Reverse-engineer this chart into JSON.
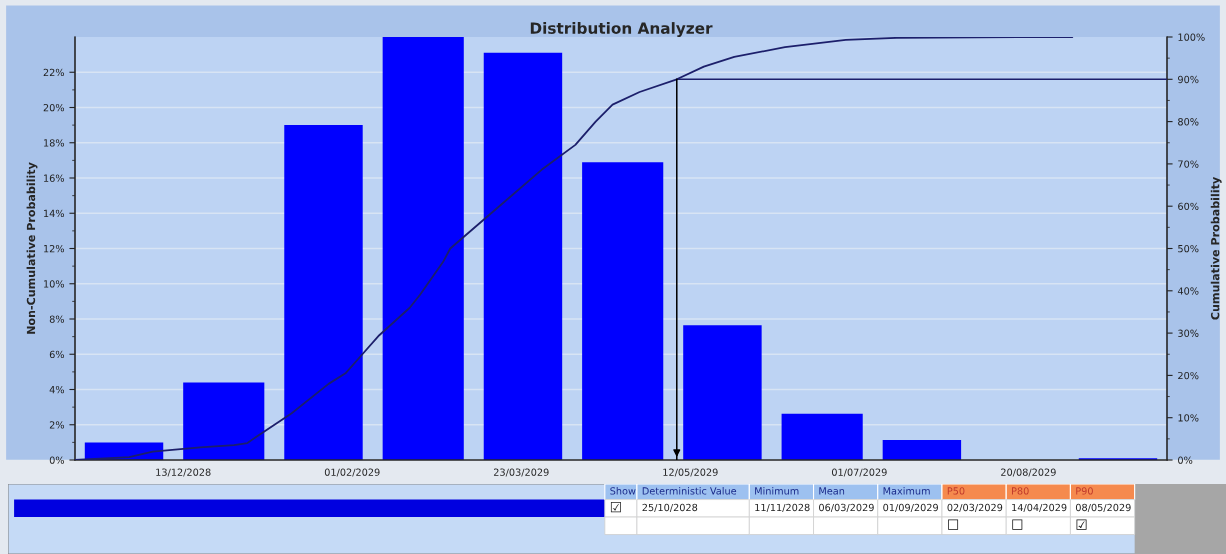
{
  "chart_data": [
    {
      "type": "histogram",
      "title": "Distribution Analyzer",
      "ylabel": "Non-Cumulative Probability",
      "y2label": "Cumulative Probability",
      "bins": [
        "2028-11-11",
        "2028-12-10",
        "2029-01-09",
        "2029-02-07",
        "2029-03-09",
        "2029-04-07",
        "2029-05-07",
        "2029-06-05",
        "2029-07-05",
        "2029-08-03",
        "2029-09-01",
        "2029-09-30"
      ],
      "values": [
        1.0,
        4.4,
        19.0,
        24.0,
        23.1,
        16.9,
        7.65,
        2.63,
        1.13,
        0,
        0.1
      ],
      "color": "#0000ff",
      "series": [
        {
          "type": "line",
          "axis": "y2",
          "color": "#1c1f6b",
          "x": [
            "2028-11-11",
            "2028-11-27",
            "2028-12-04",
            "2028-12-18",
            "2028-12-28",
            "2029-01-01",
            "2029-01-04",
            "2029-01-14",
            "2029-01-25",
            "2029-01-30",
            "2029-02-04",
            "2029-02-09",
            "2029-02-18",
            "2029-02-21",
            "2029-02-28",
            "2029-03-02",
            "2029-03-29",
            "2029-04-08",
            "2029-04-14",
            "2029-04-19",
            "2029-04-27",
            "2029-05-08",
            "2029-05-16",
            "2029-05-25",
            "2029-06-09",
            "2029-06-27",
            "2029-07-12",
            "2029-08-21",
            "2029-09-02"
          ],
          "values": [
            0,
            0.7,
            2,
            3,
            3.5,
            4,
            5.7,
            11,
            18,
            20.5,
            25,
            29.5,
            36,
            39,
            47,
            50,
            68.6,
            74.5,
            80,
            84,
            87,
            90,
            93,
            95.3,
            97.6,
            99.3,
            99.8,
            100,
            100
          ]
        }
      ],
      "xlim": [
        "2028-11-11",
        "2029-09-30"
      ],
      "xticks": [
        {
          "value": "2028-12-13",
          "label": "13/12/2028"
        },
        {
          "value": "2029-02-01",
          "label": "01/02/2029"
        },
        {
          "value": "2029-03-23",
          "label": "23/03/2029"
        },
        {
          "value": "2029-05-12",
          "label": "12/05/2029"
        },
        {
          "value": "2029-07-01",
          "label": "01/07/2029"
        },
        {
          "value": "2029-08-20",
          "label": "20/08/2029"
        }
      ],
      "ylim": [
        0,
        24
      ],
      "yticks": [
        {
          "value": 0,
          "label": "0%"
        },
        {
          "value": 2,
          "label": "2%"
        },
        {
          "value": 4,
          "label": "4%"
        },
        {
          "value": 6,
          "label": "6%"
        },
        {
          "value": 8,
          "label": "8%"
        },
        {
          "value": 10,
          "label": "10%"
        },
        {
          "value": 12,
          "label": "12%"
        },
        {
          "value": 14,
          "label": "14%"
        },
        {
          "value": 16,
          "label": "16%"
        },
        {
          "value": 18,
          "label": "18%"
        },
        {
          "value": 20,
          "label": "20%"
        },
        {
          "value": 22,
          "label": "22%"
        }
      ],
      "y2lim": [
        0,
        100
      ],
      "y2ticks": [
        {
          "value": 0,
          "label": "0%"
        },
        {
          "value": 10,
          "label": "10%"
        },
        {
          "value": 20,
          "label": "20%"
        },
        {
          "value": 30,
          "label": "30%"
        },
        {
          "value": 40,
          "label": "40%"
        },
        {
          "value": 50,
          "label": "50%"
        },
        {
          "value": 60,
          "label": "60%"
        },
        {
          "value": 70,
          "label": "70%"
        },
        {
          "value": 80,
          "label": "80%"
        },
        {
          "value": 90,
          "label": "90%"
        },
        {
          "value": 100,
          "label": "100%"
        }
      ],
      "ref_lines": [
        {
          "axis": "x",
          "value": "2029-05-08",
          "color": "#000000"
        },
        {
          "axis": "y2",
          "value": 90,
          "color": "#1c1f6b"
        }
      ],
      "grid": "y"
    },
    {
      "type": "other",
      "categories": [
        "Show",
        "Deterministic Value",
        "Minimum",
        "Mean",
        "Maximum",
        "P50",
        "P80",
        "P90"
      ],
      "colors": [
        "#9dc1f0",
        "#9dc1f0",
        "#9dc1f0",
        "#9dc1f0",
        "#9dc1f0",
        "#f58a4e",
        "#f58a4e",
        "#f58a4e"
      ],
      "annotations": [
        "☑",
        "25/10/2028",
        "11/11/2028",
        "06/03/2029",
        "01/09/2029",
        "02/03/2029",
        "14/04/2029",
        "08/05/2029",
        "☐",
        "☐",
        "☑"
      ]
    }
  ]
}
